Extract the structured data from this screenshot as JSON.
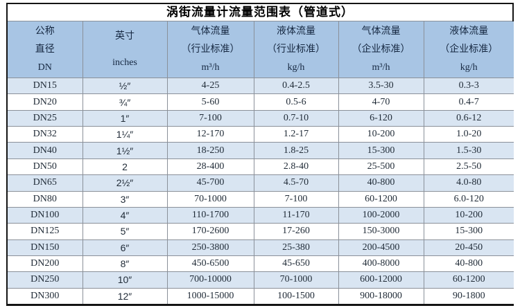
{
  "title": "涡街流量计流量范围表（管道式）",
  "table": {
    "columns": [
      {
        "id": "dn",
        "lines": [
          "公称",
          "直径",
          "DN"
        ]
      },
      {
        "id": "inches",
        "lines": [
          "英寸",
          "inches"
        ]
      },
      {
        "id": "gas-industry",
        "lines": [
          "气体流量",
          "（行业标准）",
          "m³/h"
        ]
      },
      {
        "id": "liquid-industry",
        "lines": [
          "液体流量",
          "（行业标准）",
          "kg/h"
        ]
      },
      {
        "id": "gas-enterprise",
        "lines": [
          "气体流量",
          "（企业标准）",
          "m³/h"
        ]
      },
      {
        "id": "liquid-enterprise",
        "lines": [
          "液体流量",
          "（企业标准）",
          "kg/h"
        ]
      }
    ],
    "rows": [
      [
        "DN15",
        "½″",
        "4-25",
        "0.4-2.5",
        "3.5-30",
        "0.3-3"
      ],
      [
        "DN20",
        "¾″",
        "5-60",
        "0.5-6",
        "4-70",
        "0.4-7"
      ],
      [
        "DN25",
        "1″",
        "7-100",
        "0.7-10",
        "6-120",
        "0.6-12"
      ],
      [
        "DN32",
        "1¼″",
        "12-170",
        "1.2-17",
        "10-200",
        "1.0-20"
      ],
      [
        "DN40",
        "1½″",
        "18-250",
        "1.8-25",
        "15-300",
        "1.5-30"
      ],
      [
        "DN50",
        "2",
        "28-400",
        "2.8-40",
        "25-500",
        "2.5-50"
      ],
      [
        "DN65",
        "2½″",
        "45-700",
        "4.5-70",
        "40-800",
        "4.0-80"
      ],
      [
        "DN80",
        "3″",
        "70-1000",
        "7-100",
        "60-1200",
        "6.0-120"
      ],
      [
        "DN100",
        "4″",
        "110-1700",
        "11-170",
        "100-2000",
        "10-200"
      ],
      [
        "DN125",
        "5″",
        "170-2600",
        "17-260",
        "150-3000",
        "15-300"
      ],
      [
        "DN150",
        "6″",
        "250-3800",
        "25-380",
        "200-4500",
        "20-450"
      ],
      [
        "DN200",
        "8″",
        "450-6500",
        "45-650",
        "400-8000",
        "40-800"
      ],
      [
        "DN250",
        "10″",
        "700-10000",
        "70-1000",
        "600-12000",
        "60-1200"
      ],
      [
        "DN300",
        "12″",
        "1000-15000",
        "100-1500",
        "900-18000",
        "90-1800"
      ]
    ]
  },
  "colors": {
    "header_bg": "#a8c5e4",
    "alt_row_bg": "#d9e5f2",
    "row_bg": "#ffffff",
    "grid_line": "#8a9099",
    "outer_border": "#141414",
    "title_text": "#000000",
    "header_text": "#152740",
    "body_text": "#1f2a36"
  }
}
